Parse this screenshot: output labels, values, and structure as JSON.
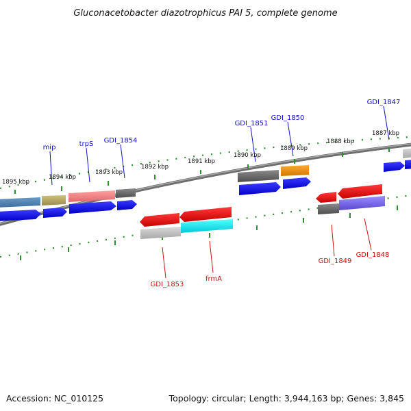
{
  "title": "Gluconacetobacter diazotrophicus PAI 5, complete genome",
  "footer": {
    "accession": "Accession: NC_010125",
    "topology": "Topology: circular; Length: 3,944,163 bp; Genes: 3,845"
  },
  "kbp_labels": [
    "1895 kbp",
    "1894 kbp",
    "1893 kbp",
    "1892 kbp",
    "1891 kbp",
    "1890 kbp",
    "1889 kbp",
    "1888 kbp",
    "1887 kbp"
  ],
  "genes_top": [
    "mip",
    "trpS",
    "GDI_1854",
    "GDI_1851",
    "GDI_1850",
    "GDI_1847"
  ],
  "genes_bottom": [
    "GDI_1853",
    "frmA",
    "GDI_1849",
    "GDI_1848"
  ],
  "colors": {
    "backbone": "#808080",
    "ticks": "#2e8b2e",
    "forward_label": "#1010c8",
    "reverse_label": "#cc1010",
    "cds": "#0000ee",
    "reverse_gene": "#ee0000"
  }
}
